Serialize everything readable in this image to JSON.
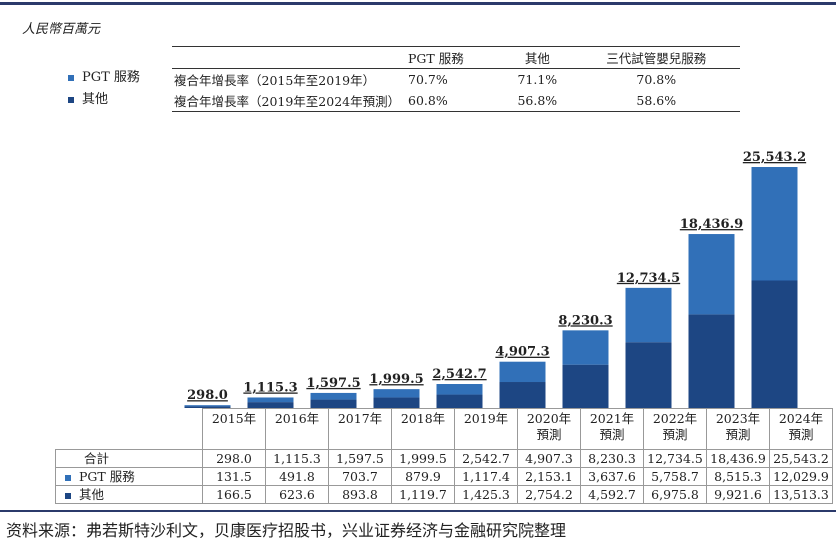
{
  "unit_label": "人民幣百萬元",
  "colors": {
    "pgt": "#3170b8",
    "other": "#1d4683",
    "frame": "#2b3a6b"
  },
  "cagr_table": {
    "headers": [
      "",
      "PGT 服務",
      "其他",
      "三代試管嬰兒服務"
    ],
    "rows": [
      [
        "複合年增長率（2015年至2019年）",
        "70.7%",
        "71.1%",
        "70.8%"
      ],
      [
        "複合年增長率（2019年至2024年預測）",
        "60.8%",
        "56.8%",
        "58.6%"
      ]
    ]
  },
  "legend": [
    {
      "label": "PGT 服務",
      "color": "#3170b8"
    },
    {
      "label": "其他",
      "color": "#1d4683"
    }
  ],
  "chart_data": {
    "type": "bar",
    "stacked": true,
    "categories": [
      "2015年",
      "2016年",
      "2017年",
      "2018年",
      "2019年",
      "2020年預測",
      "2021年預測",
      "2022年預測",
      "2023年預測",
      "2024年預測"
    ],
    "category_lines": [
      [
        "2015年"
      ],
      [
        "2016年"
      ],
      [
        "2017年"
      ],
      [
        "2018年"
      ],
      [
        "2019年"
      ],
      [
        "2020年",
        "預測"
      ],
      [
        "2021年",
        "預測"
      ],
      [
        "2022年",
        "預測"
      ],
      [
        "2023年",
        "預測"
      ],
      [
        "2024年",
        "預測"
      ]
    ],
    "series": [
      {
        "name": "其他",
        "values": [
          166.5,
          623.6,
          893.8,
          1119.7,
          1425.3,
          2754.2,
          4592.7,
          6975.8,
          9921.6,
          13513.3
        ]
      },
      {
        "name": "PGT 服務",
        "values": [
          131.5,
          491.8,
          703.7,
          879.9,
          1117.4,
          2153.1,
          3637.6,
          5758.7,
          8515.3,
          12029.9
        ]
      }
    ],
    "totals": [
      298.0,
      1115.3,
      1597.5,
      1999.5,
      2542.7,
      4907.3,
      8230.3,
      12734.5,
      18436.9,
      25543.2
    ],
    "total_labels": [
      "298.0",
      "1,115.3",
      "1,597.5",
      "1,999.5",
      "2,542.7",
      "4,907.3",
      "8,230.3",
      "12,734.5",
      "18,436.9",
      "25,543.2"
    ],
    "ylim": [
      0,
      25543.2
    ],
    "grid": false
  },
  "data_table": {
    "rows": [
      {
        "label": "合計",
        "values": [
          "298.0",
          "1,115.3",
          "1,597.5",
          "1,999.5",
          "2,542.7",
          "4,907.3",
          "8,230.3",
          "12,734.5",
          "18,436.9",
          "25,543.2"
        ]
      },
      {
        "label": "PGT 服務",
        "values": [
          "131.5",
          "491.8",
          "703.7",
          "879.9",
          "1,117.4",
          "2,153.1",
          "3,637.6",
          "5,758.7",
          "8,515.3",
          "12,029.9"
        ]
      },
      {
        "label": "其他",
        "values": [
          "166.5",
          "623.6",
          "893.8",
          "1,119.7",
          "1,425.3",
          "2,754.2",
          "4,592.7",
          "6,975.8",
          "9,921.6",
          "13,513.3"
        ]
      }
    ]
  },
  "source": "资料来源：弗若斯特沙利文，贝康医疗招股书，兴业证券经济与金融研究院整理"
}
